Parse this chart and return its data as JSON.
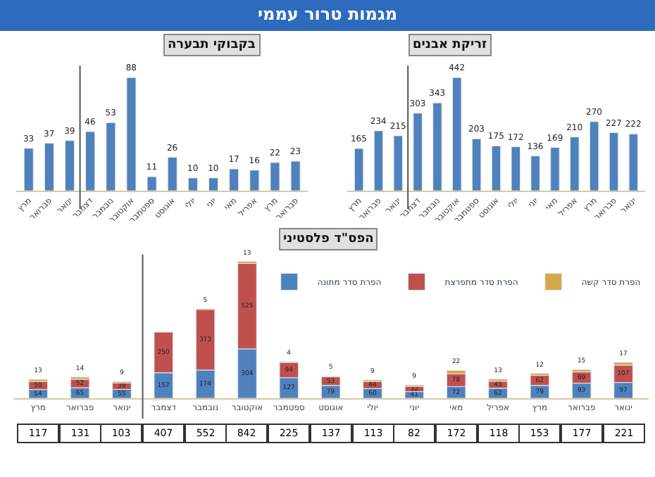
{
  "chart_data": [
    {
      "type": "bar",
      "title": "מגמות טרור עממי",
      "subtitle": "זריקת אבנים",
      "categories": [
        "מרץ",
        "פברואר",
        "ינואר",
        "דצמבר",
        "נובמבר",
        "אוקטובר",
        "ספטמבר",
        "אוגוסט",
        "יולי",
        "יוני",
        "מאי",
        "אפריל",
        "מרץ",
        "פברואר",
        "ינואר"
      ],
      "values": [
        165,
        234,
        215,
        303,
        343,
        442,
        203,
        175,
        172,
        136,
        169,
        210,
        270,
        227,
        222
      ],
      "color": "#4f81bd",
      "data_labels": true,
      "tick_labels": "x"
    },
    {
      "type": "bar",
      "title": "בקבוקי תבערה",
      "categories": [
        "מרץ",
        "פברואר",
        "ינואר",
        "דצמבר",
        "נובמבר",
        "אוקטובר",
        "ספטמבר",
        "אוגוסט",
        "יולי",
        "יוני",
        "מאי",
        "אפריל",
        "מרץ",
        "פברואר"
      ],
      "values": [
        33,
        37,
        39,
        46,
        53,
        88,
        11,
        26,
        10,
        10,
        17,
        16,
        22,
        23
      ],
      "color": "#4f81bd",
      "data_labels": true,
      "tick_labels": "x"
    },
    {
      "type": "bar",
      "title": "הפס\"ד פלסטיני",
      "stacked": true,
      "legend": "top right",
      "tick_labels": "x",
      "data_labels": true,
      "categories": [
        "מרץ",
        "פברואר",
        "ינואר",
        "דצמבר",
        "נובמבר",
        "אוקטובר",
        "ספטמבר",
        "אוגוסט",
        "יולי",
        "יוני",
        "מאי",
        "אפריל",
        "מרץ",
        "פברואר",
        "ינואר"
      ],
      "series": [
        {
          "name": "הפרת סדר מתונה",
          "color": "#4f81bd",
          "values": [
            54,
            65,
            55,
            157,
            174,
            304,
            127,
            79,
            60,
            41,
            72,
            62,
            79,
            93,
            97
          ]
        },
        {
          "name": "הפרת סדר מתפרצת",
          "color": "#c0504d",
          "values": [
            50,
            52,
            39,
            250,
            373,
            525,
            94,
            53,
            44,
            32,
            78,
            43,
            62,
            69,
            107
          ]
        },
        {
          "name": "הפרת סדר קשה",
          "color": "#d4a84a",
          "values": [
            13,
            14,
            9,
            null,
            5,
            13,
            4,
            5,
            9,
            9,
            22,
            13,
            12,
            15,
            17
          ]
        }
      ],
      "totals": [
        "117",
        "131",
        "103",
        "407",
        "552",
        "842",
        "225",
        "137",
        "113",
        "82",
        "172",
        "118",
        "153",
        "177",
        "221"
      ]
    }
  ]
}
